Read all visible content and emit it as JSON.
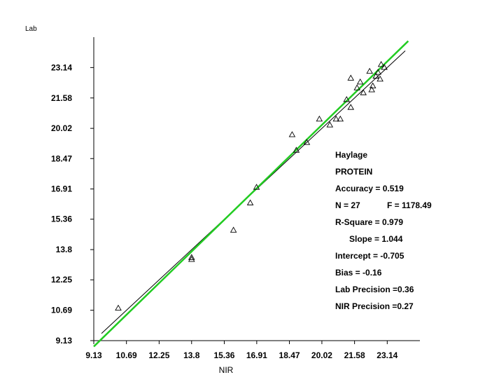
{
  "chart_data": {
    "type": "scatter",
    "xlabel": "NIR",
    "ylabel": "Lab",
    "xlim": [
      9.13,
      24.7
    ],
    "ylim": [
      9.13,
      24.7
    ],
    "x_ticks": [
      "9.13",
      "10.69",
      "12.25",
      "13.8",
      "15.36",
      "16.91",
      "18.47",
      "20.02",
      "21.58",
      "23.14"
    ],
    "y_ticks": [
      "9.13",
      "10.69",
      "12.25",
      "13.8",
      "15.36",
      "16.91",
      "18.47",
      "20.02",
      "21.58",
      "23.14"
    ],
    "points": [
      {
        "x": 10.3,
        "y": 10.8
      },
      {
        "x": 13.8,
        "y": 13.4
      },
      {
        "x": 13.8,
        "y": 13.3
      },
      {
        "x": 15.8,
        "y": 14.8
      },
      {
        "x": 16.6,
        "y": 16.2
      },
      {
        "x": 16.9,
        "y": 17.0
      },
      {
        "x": 18.6,
        "y": 19.7
      },
      {
        "x": 18.8,
        "y": 18.9
      },
      {
        "x": 19.3,
        "y": 19.3
      },
      {
        "x": 19.9,
        "y": 20.5
      },
      {
        "x": 20.4,
        "y": 20.2
      },
      {
        "x": 20.7,
        "y": 20.5
      },
      {
        "x": 20.9,
        "y": 20.5
      },
      {
        "x": 21.2,
        "y": 21.5
      },
      {
        "x": 21.4,
        "y": 21.1
      },
      {
        "x": 21.4,
        "y": 22.6
      },
      {
        "x": 21.7,
        "y": 22.1
      },
      {
        "x": 21.85,
        "y": 22.4
      },
      {
        "x": 22.0,
        "y": 21.85
      },
      {
        "x": 22.3,
        "y": 22.95
      },
      {
        "x": 22.4,
        "y": 22.0
      },
      {
        "x": 22.45,
        "y": 22.2
      },
      {
        "x": 22.6,
        "y": 22.7
      },
      {
        "x": 22.7,
        "y": 22.9
      },
      {
        "x": 22.8,
        "y": 22.55
      },
      {
        "x": 22.85,
        "y": 23.3
      },
      {
        "x": 23.0,
        "y": 23.15
      }
    ],
    "regression_line": {
      "slope": 1.044,
      "intercept": -0.705,
      "color": "#22cc22"
    },
    "identity_line": {
      "color": "#000000"
    },
    "marker_color": "#000000"
  },
  "stats": {
    "lines": [
      "Haylage",
      "PROTEIN",
      "Accuracy = 0.519",
      "N = 27",
      " R-Square = 0.979",
      "Slope = 1.044",
      "Intercept = -0.705",
      "Bias = -0.16",
      "Lab Precision =0.36",
      "NIR Precision =0.27"
    ],
    "f_value": "F = 1178.49"
  }
}
